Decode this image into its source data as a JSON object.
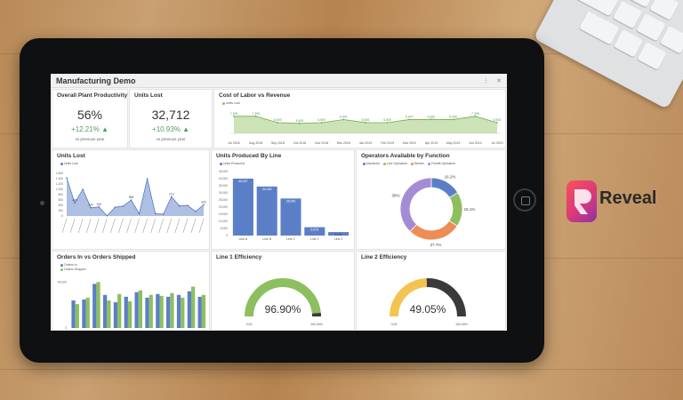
{
  "app": {
    "title": "Manufacturing Demo",
    "more_icon": "more-vertical-icon",
    "close_icon": "close-icon"
  },
  "brand": {
    "name": "Reveal",
    "colors": {
      "logo_start": "#f7525b",
      "logo_end": "#8e2fa8"
    }
  },
  "colors": {
    "blue": "#5b7fc7",
    "green": "#8dbf5f",
    "orange": "#ee8c55",
    "purple": "#a58bd6",
    "yellow": "#f4c453",
    "dark": "#3a3a3a",
    "positive": "#4aa05e"
  },
  "tiles": {
    "plant_productivity": {
      "title": "Overall Plant Productivity",
      "value": "56%",
      "delta": "+12.21%",
      "sub": "vs previous year"
    },
    "units_lost_kpi": {
      "title": "Units Lost",
      "value": "32,712",
      "delta": "+10.93%",
      "sub": "vs previous year"
    },
    "labor_revenue": {
      "title": "Cost of Labor vs Revenue"
    },
    "units_lost_chart": {
      "title": "Units Lost"
    },
    "units_by_line": {
      "title": "Units Produced By Line"
    },
    "operators": {
      "title": "Operators Available by Function"
    },
    "orders": {
      "title": "Orders In vs Orders Shipped"
    },
    "line1": {
      "title": "Line 1 Efficiency",
      "value": "96.90%",
      "min": "0.00",
      "max": "100.00%"
    },
    "line2": {
      "title": "Line 2 Efficiency",
      "value": "49.05%",
      "min": "0.00",
      "max": "100.00%"
    }
  },
  "chart_data": [
    {
      "id": "labor_revenue",
      "type": "area",
      "series": [
        {
          "name": "Units Lost",
          "values": [
            7399,
            7396,
            6500,
            6400,
            6500,
            6941,
            6506,
            6500,
            6947,
            6962,
            6945,
            7398,
            6500
          ]
        }
      ],
      "categories": [
        "Jul 2018",
        "Aug 2018",
        "Sep 2018",
        "Oct 2018",
        "Nov 2018",
        "Dec 2018",
        "Jan 2019",
        "Feb 2019",
        "Mar 2019",
        "Apr 2019",
        "May 2019",
        "Jun 2019",
        "Jul 2019"
      ],
      "data_labels": [
        "7,399",
        "7,396",
        "6,500",
        "6,400",
        "6,500",
        "6,941",
        "6,506",
        "6,500",
        "6,947",
        "6,962",
        "6,945",
        "7,398",
        "6,500"
      ],
      "ylim": [
        5000,
        8000
      ]
    },
    {
      "id": "units_lost",
      "type": "area",
      "series": [
        {
          "name": "Units Lost",
          "values": [
            1430,
            489,
            1000,
            310,
            340,
            10,
            325,
            370,
            598,
            91,
            1400,
            93,
            70,
            719,
            380,
            400,
            170,
            420
          ]
        }
      ],
      "data_labels": [
        "",
        "489",
        "",
        "310",
        "340",
        "",
        "",
        "",
        "598",
        "",
        "",
        "",
        "",
        "719",
        "",
        "",
        "",
        "420"
      ],
      "y_ticks": [
        "0",
        "200",
        "400",
        "600",
        "800",
        "1,000",
        "1,200",
        "1,400",
        "1,600"
      ],
      "ylim": [
        0,
        1600
      ]
    },
    {
      "id": "units_by_line",
      "type": "bar",
      "series": [
        {
          "name": "Units Produced",
          "values": [
            40047,
            34490,
            26052,
            5876,
            2444
          ]
        }
      ],
      "categories": [
        "Line A",
        "Line B",
        "Line C",
        "Line 1",
        "Line 2"
      ],
      "data_labels": [
        "40,047",
        "34,490",
        "26,052",
        "5,876",
        "2,444"
      ],
      "y_ticks": [
        "0",
        "5,000",
        "10,000",
        "15,000",
        "20,000",
        "25,000",
        "30,000",
        "35,000",
        "40,000",
        "45,000"
      ],
      "ylim": [
        0,
        45000
      ]
    },
    {
      "id": "operators",
      "type": "pie",
      "series": [
        {
          "name": "Machinist",
          "value": 16.2
        },
        {
          "name": "Line Operators",
          "value": 18.1
        },
        {
          "name": "Welder",
          "value": 27.7
        },
        {
          "name": "Forklift Operators",
          "value": 38
        }
      ],
      "data_labels": [
        "16.2%",
        "18.1%",
        "27.7%",
        "38%"
      ]
    },
    {
      "id": "orders",
      "type": "bar",
      "series": [
        {
          "name": "Orders In",
          "values": [
            30000,
            31000,
            48000,
            36000,
            28000,
            34000,
            39000,
            33000,
            37000,
            34000,
            36000,
            40000,
            34000
          ]
        },
        {
          "name": "Orders Shipped",
          "values": [
            26000,
            33000,
            50000,
            30000,
            37000,
            29000,
            41000,
            36000,
            35000,
            38000,
            33000,
            45000,
            36000
          ]
        }
      ],
      "y_ticks": [
        "0",
        "50,000"
      ],
      "ylim": [
        0,
        60000
      ]
    },
    {
      "id": "line1",
      "type": "gauge",
      "values": [
        96.9
      ],
      "ylim": [
        0,
        100
      ]
    },
    {
      "id": "line2",
      "type": "gauge",
      "values": [
        49.05
      ],
      "ylim": [
        0,
        100
      ]
    }
  ]
}
